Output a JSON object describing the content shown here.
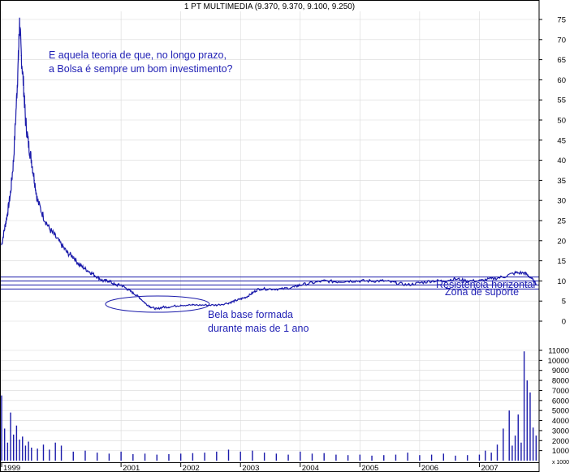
{
  "title": "1 PT MULTIMEDIA (9.370, 9.370, 9.100, 9.250)",
  "annotations": {
    "question_line1": "E aquela teoria de que, no longo prazo,",
    "question_line2": "a Bolsa é sempre um bom investimento?",
    "base_line1": "Bela base formada",
    "base_line2": "durante mais de 1 ano",
    "resistance": "Resistência horizontal",
    "support": "Zona de suporte"
  },
  "colors": {
    "price": "#1a1aaa",
    "annotation": "#1f1fb4",
    "grid": "#d8d8d8",
    "volume": "#1a1aaa",
    "axis": "#000000"
  },
  "chart_data": [
    {
      "type": "line",
      "title": "1 PT MULTIMEDIA (9.370, 9.370, 9.100, 9.250)",
      "y_ticks": [
        0,
        5,
        10,
        15,
        20,
        25,
        30,
        35,
        40,
        45,
        50,
        55,
        60,
        65,
        70,
        75
      ],
      "ylim": [
        0,
        77
      ],
      "x_ticks": [
        "1999",
        "2001",
        "2002",
        "2003",
        "2004",
        "2005",
        "2006",
        "2007"
      ],
      "xlim": [
        1999.0,
        2008.0
      ],
      "grid": true,
      "series": [
        {
          "x": [
            1999.0,
            1999.05,
            1999.1,
            1999.15,
            1999.2,
            1999.25,
            1999.28,
            1999.3,
            1999.33,
            1999.37,
            1999.4,
            1999.45,
            1999.5,
            1999.55,
            1999.6,
            1999.7,
            1999.8,
            1999.9,
            2000.0,
            2000.1,
            2000.2,
            2000.3,
            2000.4,
            2000.5,
            2000.6,
            2000.7,
            2000.8,
            2000.9,
            2001.0,
            2001.1,
            2001.2,
            2001.3,
            2001.4,
            2001.5,
            2001.6,
            2001.7,
            2001.8,
            2002.0,
            2002.2,
            2002.4,
            2002.6,
            2002.8,
            2002.9,
            2003.0,
            2003.1,
            2003.2,
            2003.3,
            2003.5,
            2003.7,
            2003.9,
            2004.0,
            2004.2,
            2004.4,
            2004.6,
            2004.8,
            2005.0,
            2005.2,
            2005.4,
            2005.6,
            2005.8,
            2006.0,
            2006.2,
            2006.4,
            2006.6,
            2006.8,
            2007.0,
            2007.2,
            2007.4,
            2007.6,
            2007.75,
            2007.85,
            2007.95
          ],
          "values": [
            19,
            23,
            27,
            32,
            40,
            55,
            65,
            74,
            66,
            58,
            50,
            44,
            40,
            35,
            30,
            26,
            23,
            21,
            19,
            17,
            16,
            14,
            13,
            12,
            11,
            10,
            10,
            9,
            9,
            8,
            7,
            6,
            4.5,
            3.5,
            3,
            3.5,
            3.5,
            4,
            4,
            4,
            4,
            4.5,
            5,
            5.5,
            6,
            7,
            8,
            8,
            8,
            8.5,
            9,
            9.5,
            10,
            9.8,
            10,
            10,
            10,
            10,
            9.5,
            9,
            9.5,
            10,
            10,
            10.5,
            10,
            10,
            10.5,
            11,
            12,
            12,
            11,
            9.25
          ]
        }
      ],
      "horizontal_lines": [
        {
          "label": "Resistência horizontal",
          "value": 11
        },
        {
          "label": "Resistência horizontal",
          "value": 10
        },
        {
          "label": "Zona de suporte",
          "value": 9
        },
        {
          "label": "Zona de suporte",
          "value": 8
        }
      ]
    },
    {
      "type": "bar",
      "title": "",
      "y_ticks": [
        1000,
        2000,
        3000,
        4000,
        5000,
        6000,
        7000,
        8000,
        9000,
        10000,
        11000
      ],
      "ylim": [
        0,
        12000
      ],
      "xlim": [
        1999.0,
        2008.0
      ],
      "unit_label": "x 1000",
      "x": [
        1999.0,
        1999.05,
        1999.1,
        1999.15,
        1999.2,
        1999.25,
        1999.3,
        1999.35,
        1999.4,
        1999.45,
        1999.5,
        1999.6,
        1999.7,
        1999.8,
        1999.9,
        2000.0,
        2000.2,
        2000.4,
        2000.6,
        2000.8,
        2001.0,
        2001.2,
        2001.4,
        2001.6,
        2001.8,
        2002.0,
        2002.2,
        2002.4,
        2002.6,
        2002.8,
        2003.0,
        2003.2,
        2003.4,
        2003.6,
        2003.8,
        2004.0,
        2004.2,
        2004.4,
        2004.6,
        2004.8,
        2005.0,
        2005.2,
        2005.4,
        2005.6,
        2005.8,
        2006.0,
        2006.2,
        2006.4,
        2006.6,
        2006.8,
        2007.0,
        2007.1,
        2007.2,
        2007.3,
        2007.4,
        2007.5,
        2007.55,
        2007.6,
        2007.65,
        2007.7,
        2007.75,
        2007.8,
        2007.85,
        2007.9,
        2007.95
      ],
      "values": [
        6500,
        3200,
        1800,
        4800,
        2600,
        3500,
        2100,
        2400,
        1500,
        1900,
        1300,
        1200,
        1600,
        1100,
        1800,
        1500,
        900,
        1000,
        800,
        700,
        900,
        650,
        700,
        600,
        650,
        700,
        750,
        800,
        900,
        1100,
        900,
        1000,
        800,
        700,
        600,
        900,
        700,
        750,
        600,
        550,
        600,
        500,
        550,
        600,
        800,
        550,
        600,
        700,
        500,
        550,
        600,
        1000,
        800,
        1600,
        3200,
        5000,
        1500,
        2500,
        4600,
        1800,
        10900,
        8000,
        6800,
        3300,
        2500
      ]
    }
  ]
}
